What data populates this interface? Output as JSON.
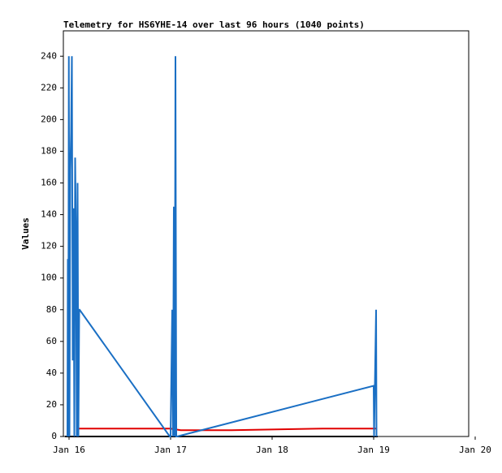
{
  "chart_data": {
    "type": "line",
    "title": "Telemetry for HS6YHE-14 over last 96 hours (1040 points)",
    "ylabel": "Values",
    "xlim": [
      -0.056,
      3.936
    ],
    "xticks": [
      {
        "value": 0,
        "label": "Jan 16"
      },
      {
        "value": 1,
        "label": "Jan 17"
      },
      {
        "value": 2,
        "label": "Jan 18"
      },
      {
        "value": 3,
        "label": "Jan 19"
      },
      {
        "value": 4,
        "label": "Jan 20"
      }
    ],
    "ylim": [
      0,
      256
    ],
    "yticks": [
      0,
      20,
      40,
      60,
      80,
      100,
      120,
      140,
      160,
      180,
      200,
      220,
      240
    ],
    "series": [
      {
        "color": "#000000",
        "x": [
          -0.04,
          1.04,
          1.048,
          1.056,
          3.04
        ],
        "values": [
          0,
          0,
          60,
          0,
          0
        ]
      },
      {
        "color": "#e00000",
        "x": [
          0.08,
          1.0,
          1.1,
          1.6,
          2.5,
          3.03
        ],
        "values": [
          5,
          5,
          4,
          4,
          5,
          5
        ]
      },
      {
        "color": "#1a6fc4",
        "x": [
          -0.016,
          -0.012,
          -0.008,
          -0.002,
          0.004,
          0.012,
          0.02,
          0.028,
          0.036,
          0.044,
          0.052,
          0.06,
          0.068,
          0.076,
          0.084,
          0.092,
          0.1,
          0.104,
          0.992,
          1.0,
          1.016,
          1.024,
          1.032,
          1.04,
          1.048,
          1.056,
          1.064,
          3.0,
          3.004,
          3.024,
          3.028
        ],
        "values": [
          0,
          112,
          0,
          240,
          0,
          168,
          192,
          240,
          48,
          144,
          0,
          176,
          128,
          0,
          160,
          0,
          80,
          80,
          0,
          0,
          80,
          0,
          145,
          0,
          240,
          0,
          0,
          32,
          0,
          80,
          0
        ]
      }
    ]
  }
}
